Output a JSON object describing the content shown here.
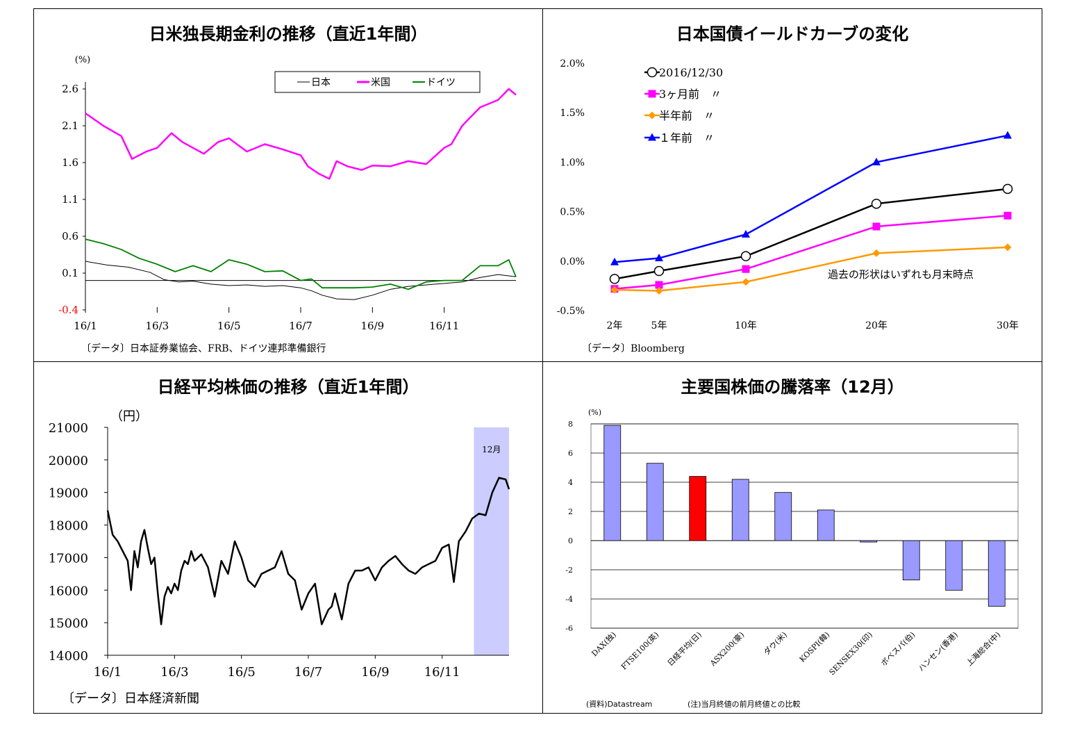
{
  "panels": {
    "rates": {
      "title": "日米独長期金利の推移（直近1年間）",
      "source": "〔データ〕日本証券業協会、FRB、ドイツ連邦準備銀行",
      "unit": "(%)",
      "legend": [
        "日本",
        "米国",
        "ドイツ"
      ]
    },
    "yield": {
      "title": "日本国債イールドカーブの変化",
      "source": "〔データ〕Bloomberg",
      "note": "過去の形状はいずれも月末時点",
      "legend": [
        "2016/12/30",
        "3ヶ月前　〃",
        "半年前　〃",
        "１年前　〃"
      ]
    },
    "nikkei": {
      "title": "日経平均株価の推移（直近1年間）",
      "source": "〔データ〕日本経済新聞",
      "unit": "（円）",
      "band_label": "12月"
    },
    "stocks": {
      "title": "主要国株価の騰落率（12月）",
      "unit": "(%)",
      "source": "(資料)Datastream",
      "note": "(注)当月終値の前月終値との比較"
    }
  },
  "chart_data": [
    {
      "type": "line",
      "title": "日米独長期金利の推移（直近1年間）",
      "ylabel": "(%)",
      "ylim": [
        -0.4,
        2.6
      ],
      "yticks": [
        "2.6",
        "2.1",
        "1.6",
        "1.1",
        "0.6",
        "0.1",
        "-0.4"
      ],
      "xticks": [
        "16/1",
        "16/3",
        "16/5",
        "16/7",
        "16/9",
        "16/11"
      ],
      "x_range": [
        0,
        12
      ],
      "legend_position": "top-right",
      "colors": {
        "日本": "#000000",
        "米国": "#ff00ff",
        "ドイツ": "#008000",
        "neg_tick": "#ff0000"
      },
      "series": [
        {
          "name": "日本",
          "x": [
            0,
            0.6,
            1.2,
            1.8,
            2.2,
            2.6,
            3.0,
            3.5,
            4.0,
            4.5,
            5.0,
            5.5,
            6.0,
            6.3,
            6.6,
            7.0,
            7.5,
            8.0,
            8.5,
            9.0,
            9.5,
            10.0,
            10.5,
            11.0,
            11.5,
            12.0
          ],
          "y": [
            0.26,
            0.21,
            0.18,
            0.11,
            0.01,
            -0.02,
            -0.01,
            -0.05,
            -0.07,
            -0.06,
            -0.08,
            -0.07,
            -0.1,
            -0.14,
            -0.2,
            -0.25,
            -0.26,
            -0.2,
            -0.12,
            -0.08,
            -0.06,
            -0.04,
            -0.02,
            0.04,
            0.08,
            0.05
          ]
        },
        {
          "name": "米国",
          "x": [
            0,
            0.5,
            1.0,
            1.3,
            1.7,
            2.0,
            2.4,
            2.7,
            3.0,
            3.3,
            3.7,
            4.0,
            4.5,
            5.0,
            5.5,
            6.0,
            6.2,
            6.5,
            6.8,
            7.0,
            7.3,
            7.7,
            8.0,
            8.5,
            9.0,
            9.5,
            10.0,
            10.2,
            10.5,
            11.0,
            11.5,
            11.8,
            12.0
          ],
          "y": [
            2.27,
            2.1,
            1.96,
            1.65,
            1.75,
            1.8,
            2.0,
            1.88,
            1.8,
            1.72,
            1.88,
            1.93,
            1.75,
            1.85,
            1.78,
            1.7,
            1.55,
            1.45,
            1.38,
            1.62,
            1.55,
            1.5,
            1.56,
            1.55,
            1.62,
            1.58,
            1.8,
            1.85,
            2.1,
            2.35,
            2.45,
            2.6,
            2.52
          ]
        },
        {
          "name": "ドイツ",
          "x": [
            0,
            0.5,
            1.0,
            1.5,
            2.0,
            2.5,
            3.0,
            3.5,
            4.0,
            4.5,
            5.0,
            5.5,
            6.0,
            6.3,
            6.6,
            7.0,
            7.5,
            8.0,
            8.5,
            9.0,
            9.5,
            10.0,
            10.5,
            11.0,
            11.5,
            11.8,
            12.0
          ],
          "y": [
            0.56,
            0.5,
            0.42,
            0.3,
            0.22,
            0.12,
            0.2,
            0.12,
            0.28,
            0.22,
            0.12,
            0.13,
            0.0,
            0.02,
            -0.1,
            -0.1,
            -0.1,
            -0.09,
            -0.05,
            -0.12,
            -0.02,
            0.0,
            0.0,
            0.2,
            0.2,
            0.28,
            0.05
          ]
        }
      ]
    },
    {
      "type": "line",
      "title": "日本国債イールドカーブの変化",
      "categories": [
        "2年",
        "5年",
        "10年",
        "20年",
        "30年"
      ],
      "x": [
        2,
        5,
        10,
        20,
        30
      ],
      "ylim": [
        -0.5,
        2.0
      ],
      "yticks": [
        "2.0%",
        "1.5%",
        "1.0%",
        "0.5%",
        "0.0%",
        "-0.5%"
      ],
      "legend_position": "top-left",
      "series": [
        {
          "name": "2016/12/30",
          "values": [
            -0.18,
            -0.1,
            0.05,
            0.58,
            0.73
          ],
          "color": "#000000",
          "marker": "circle"
        },
        {
          "name": "3ヶ月前　〃",
          "values": [
            -0.28,
            -0.24,
            -0.08,
            0.35,
            0.46
          ],
          "color": "#ff00ff",
          "marker": "square"
        },
        {
          "name": "半年前　〃",
          "values": [
            -0.29,
            -0.3,
            -0.21,
            0.08,
            0.14
          ],
          "color": "#ff9900",
          "marker": "diamond"
        },
        {
          "name": "１年前　〃",
          "values": [
            -0.01,
            0.03,
            0.27,
            1.0,
            1.27
          ],
          "color": "#0000ff",
          "marker": "triangle"
        }
      ]
    },
    {
      "type": "line",
      "title": "日経平均株価の推移（直近1年間）",
      "ylabel": "（円）",
      "ylim": [
        14000,
        21000
      ],
      "yticks": [
        "21000",
        "20000",
        "19000",
        "18000",
        "17000",
        "16000",
        "15000",
        "14000"
      ],
      "xticks": [
        "16/1",
        "16/3",
        "16/5",
        "16/7",
        "16/9",
        "16/11"
      ],
      "x_range": [
        0,
        12
      ],
      "highlight": {
        "label": "12月",
        "x_from": 10.95,
        "x_to": 12,
        "color": "#ccccff"
      },
      "series": [
        {
          "name": "",
          "color": "#000000",
          "x": [
            0.0,
            0.15,
            0.3,
            0.5,
            0.6,
            0.7,
            0.8,
            0.9,
            1.0,
            1.1,
            1.2,
            1.3,
            1.4,
            1.5,
            1.6,
            1.7,
            1.8,
            1.9,
            2.0,
            2.1,
            2.2,
            2.3,
            2.4,
            2.5,
            2.6,
            2.8,
            3.0,
            3.2,
            3.4,
            3.6,
            3.8,
            4.0,
            4.2,
            4.4,
            4.6,
            4.8,
            5.0,
            5.2,
            5.4,
            5.6,
            5.8,
            6.0,
            6.2,
            6.4,
            6.6,
            6.7,
            6.8,
            7.0,
            7.2,
            7.4,
            7.6,
            7.8,
            8.0,
            8.2,
            8.4,
            8.6,
            8.8,
            9.0,
            9.2,
            9.4,
            9.6,
            9.8,
            10.0,
            10.2,
            10.35,
            10.5,
            10.7,
            10.9,
            11.1,
            11.3,
            11.5,
            11.7,
            11.9,
            12.0
          ],
          "y": [
            18450,
            17700,
            17500,
            17100,
            16900,
            16000,
            17200,
            16700,
            17500,
            17850,
            17300,
            16800,
            17000,
            15900,
            14950,
            15800,
            16100,
            15900,
            16200,
            16000,
            16600,
            16900,
            16800,
            17200,
            16900,
            17100,
            16700,
            15800,
            16900,
            16500,
            17500,
            17000,
            16300,
            16100,
            16500,
            16600,
            16700,
            17200,
            16500,
            16300,
            15400,
            15900,
            16200,
            14950,
            15400,
            15500,
            15900,
            15100,
            16200,
            16600,
            16600,
            16700,
            16300,
            16700,
            16900,
            17050,
            16800,
            16600,
            16500,
            16700,
            16800,
            16900,
            17300,
            17400,
            16250,
            17500,
            17800,
            18200,
            18350,
            18300,
            19000,
            19450,
            19400,
            19100
          ]
        }
      ]
    },
    {
      "type": "bar",
      "title": "主要国株価の騰落率（12月）",
      "ylabel": "(%)",
      "ylim": [
        -6,
        8
      ],
      "yticks": [
        "8",
        "6",
        "4",
        "2",
        "0",
        "-2",
        "-4",
        "-6"
      ],
      "categories": [
        "DAX(独)",
        "FTSE100(英)",
        "日経平均(日)",
        "ASX200(豪)",
        "ダウ(米)",
        "KOSPI(韓)",
        "SENSEX30(印)",
        "ボベスパ(伯)",
        "ハンセン(香港)",
        "上海総合(中)"
      ],
      "values": [
        7.9,
        5.3,
        4.4,
        4.2,
        3.3,
        2.1,
        -0.1,
        -2.7,
        -3.4,
        -4.5
      ],
      "colors": [
        "#9999ff",
        "#9999ff",
        "#ff0000",
        "#9999ff",
        "#9999ff",
        "#9999ff",
        "#9999ff",
        "#9999ff",
        "#9999ff",
        "#9999ff"
      ]
    }
  ]
}
